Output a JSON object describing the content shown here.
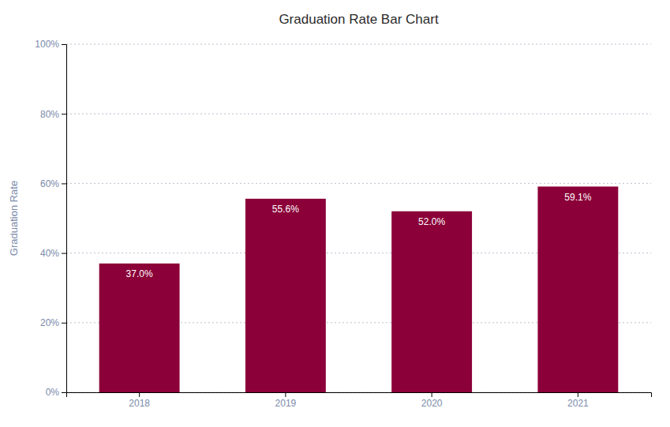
{
  "chart_data": {
    "type": "bar",
    "title": "Graduation Rate Bar Chart",
    "categories": [
      "2018",
      "2019",
      "2020",
      "2021"
    ],
    "values": [
      37.0,
      55.6,
      52.0,
      59.1
    ],
    "value_labels": [
      "37.0%",
      "55.6%",
      "52.0%",
      "59.1%"
    ],
    "color": "#8B0038",
    "ylabel": "Graduation Rate",
    "ylim": [
      0,
      100
    ],
    "yticks": [
      {
        "value": 0,
        "label": "0%"
      },
      {
        "value": 20,
        "label": "20%"
      },
      {
        "value": 40,
        "label": "40%"
      },
      {
        "value": 60,
        "label": "60%"
      },
      {
        "value": 80,
        "label": "80%"
      },
      {
        "value": 100,
        "label": "100%"
      }
    ],
    "grid": true,
    "data_labels": true
  }
}
